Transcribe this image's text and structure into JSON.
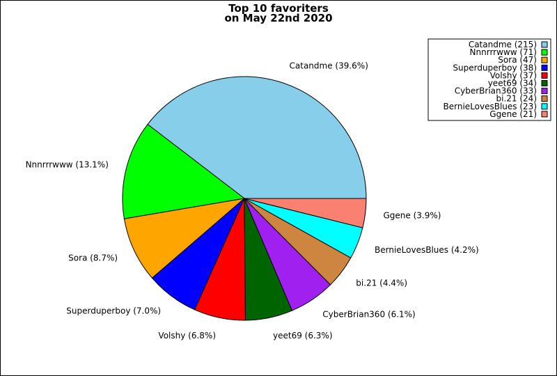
{
  "chart_data": {
    "type": "pie",
    "title_lines": [
      "Top 10 favoriters",
      "on May 22nd 2020"
    ],
    "slices": [
      {
        "name": "Catandme",
        "value": 215,
        "pct_label": "Catandme (39.6%)",
        "legend_label": "Catandme (215)",
        "color": "#87ceeb"
      },
      {
        "name": "Nnnrrrwww",
        "value": 71,
        "pct_label": "Nnnrrrwww (13.1%)",
        "legend_label": "Nnnrrrwww (71)",
        "color": "#00ff00"
      },
      {
        "name": "Sora",
        "value": 47,
        "pct_label": "Sora (8.7%)",
        "legend_label": "Sora (47)",
        "color": "#ffa500"
      },
      {
        "name": "Superduperboy",
        "value": 38,
        "pct_label": "Superduperboy (7.0%)",
        "legend_label": "Superduperboy (38)",
        "color": "#0000ff"
      },
      {
        "name": "Volshy",
        "value": 37,
        "pct_label": "Volshy (6.8%)",
        "legend_label": "Volshy (37)",
        "color": "#ff0000"
      },
      {
        "name": "yeet69",
        "value": 34,
        "pct_label": "yeet69 (6.3%)",
        "legend_label": "yeet69 (34)",
        "color": "#006400"
      },
      {
        "name": "CyberBrian360",
        "value": 33,
        "pct_label": "CyberBrian360 (6.1%)",
        "legend_label": "CyberBrian360 (33)",
        "color": "#a020f0"
      },
      {
        "name": "bi.21",
        "value": 24,
        "pct_label": "bi.21 (4.4%)",
        "legend_label": "bi.21 (24)",
        "color": "#cd853f"
      },
      {
        "name": "BernieLovesBlues",
        "value": 23,
        "pct_label": "BernieLovesBlues (4.2%)",
        "legend_label": "BernieLovesBlues (23)",
        "color": "#00ffff"
      },
      {
        "name": "Ggene",
        "value": 21,
        "pct_label": "Ggene (3.9%)",
        "legend_label": "Ggene (21)",
        "color": "#fa8072"
      }
    ],
    "start_angle_deg": 0,
    "direction": "counterclockwise",
    "legend_position": "top-right"
  }
}
